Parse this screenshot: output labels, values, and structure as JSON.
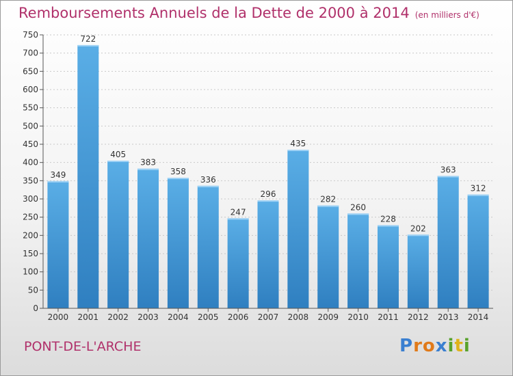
{
  "header": {
    "title": "Remboursements Annuels de la Dette de 2000 à 2014",
    "unit": "(en milliers d'€)"
  },
  "footer": {
    "city": "PONT-DE-L'ARCHE",
    "logo": "Proxiti"
  },
  "chart_data": {
    "type": "bar",
    "title": "Remboursements Annuels de la Dette de 2000 à 2014",
    "subtitle": "(en milliers d'€)",
    "xlabel": "",
    "ylabel": "",
    "ylim": [
      0,
      750
    ],
    "yticks": [
      0,
      50,
      100,
      150,
      200,
      250,
      300,
      350,
      400,
      450,
      500,
      550,
      600,
      650,
      700,
      750
    ],
    "grid": true,
    "categories": [
      "2000",
      "2001",
      "2002",
      "2003",
      "2004",
      "2005",
      "2006",
      "2007",
      "2008",
      "2009",
      "2010",
      "2011",
      "2012",
      "2013",
      "2014"
    ],
    "values": [
      349,
      722,
      405,
      383,
      358,
      336,
      247,
      296,
      435,
      282,
      260,
      228,
      202,
      363,
      312
    ],
    "bar_color": "#4a9fdc"
  }
}
